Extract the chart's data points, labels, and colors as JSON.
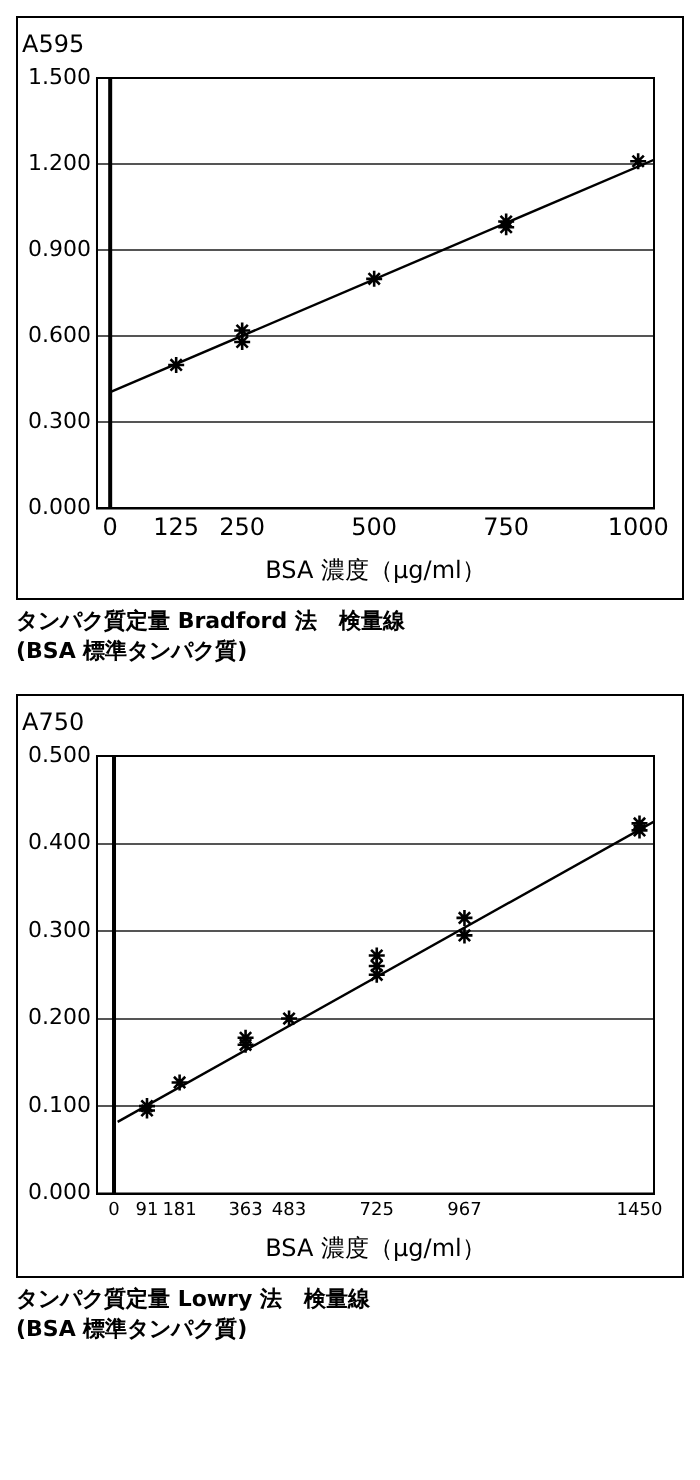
{
  "chart_data": [
    {
      "type": "scatter",
      "title": "タンパク質定量 Bradford 法　検量線",
      "subtitle": "(BSA 標準タンパク質)",
      "xlabel": "BSA 濃度（μg/ml）",
      "ylabel": "A595",
      "xlim": [
        -25,
        1030
      ],
      "xticks": [
        0,
        125,
        250,
        500,
        750,
        1000
      ],
      "ylim": [
        0,
        1.5
      ],
      "yticks": [
        {
          "value": 0,
          "label": "0.000"
        },
        {
          "value": 0.3,
          "label": "0.300"
        },
        {
          "value": 0.6,
          "label": "0.600"
        },
        {
          "value": 0.9,
          "label": "0.900"
        },
        {
          "value": 1.2,
          "label": "1.200"
        },
        {
          "value": 1.5,
          "label": "1.500"
        }
      ],
      "grid": "y",
      "marker": "cross",
      "ref_lines": [
        {
          "axis": "x",
          "value": 0,
          "color": "#000000"
        }
      ],
      "series": [
        {
          "color": "#000000",
          "x": [
            125,
            250,
            250,
            500,
            750,
            750,
            1000
          ],
          "values": [
            0.5,
            0.58,
            0.62,
            0.8,
            0.98,
            1.0,
            1.21
          ]
        },
        {
          "type": "line",
          "marker": "none",
          "color": "#000000",
          "x": [
            0,
            1030
          ],
          "values": [
            0.405,
            1.215
          ]
        }
      ]
    },
    {
      "type": "scatter",
      "title": "タンパク質定量 Lowry 法　検量線",
      "subtitle": "(BSA 標準タンパク質)",
      "xlabel": "BSA 濃度（μg/ml）",
      "ylabel": "A750",
      "xlim": [
        -47,
        1490
      ],
      "xticks": [
        0,
        91,
        181,
        363,
        483,
        725,
        967,
        1450
      ],
      "ylim": [
        0,
        0.5
      ],
      "yticks": [
        {
          "value": 0,
          "label": "0.000"
        },
        {
          "value": 0.1,
          "label": "0.100"
        },
        {
          "value": 0.2,
          "label": "0.200"
        },
        {
          "value": 0.3,
          "label": "0.300"
        },
        {
          "value": 0.4,
          "label": "0.400"
        },
        {
          "value": 0.5,
          "label": "0.500"
        }
      ],
      "grid": "y",
      "marker": "cross",
      "ref_lines": [
        {
          "axis": "x",
          "value": 0,
          "color": "#000000"
        }
      ],
      "series": [
        {
          "color": "#000000",
          "x": [
            91,
            91,
            181,
            363,
            363,
            483,
            725,
            725,
            725,
            967,
            967,
            1450,
            1450
          ],
          "values": [
            0.095,
            0.1,
            0.127,
            0.17,
            0.178,
            0.2,
            0.25,
            0.26,
            0.272,
            0.295,
            0.315,
            0.415,
            0.423
          ]
        },
        {
          "type": "line",
          "marker": "none",
          "color": "#000000",
          "x": [
            10,
            1490
          ],
          "values": [
            0.082,
            0.425
          ]
        }
      ]
    }
  ]
}
